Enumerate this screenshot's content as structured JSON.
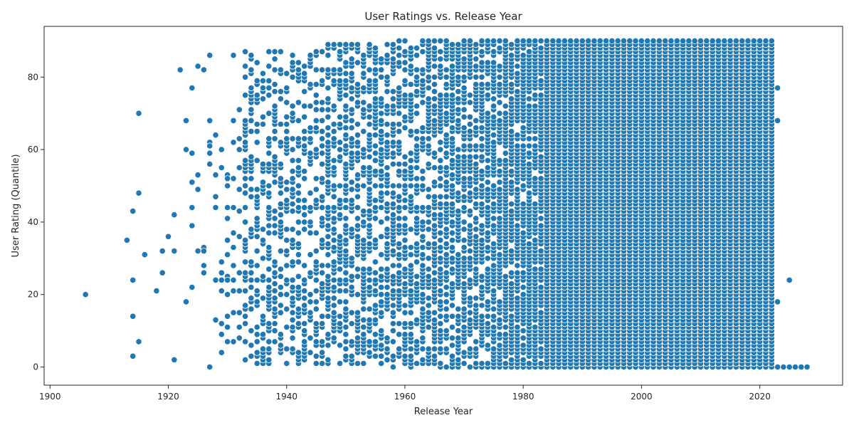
{
  "chart_data": {
    "type": "scatter",
    "title": "User Ratings vs. Release Year",
    "xlabel": "Release Year",
    "ylabel": "User Rating (Quantile)",
    "xlim": [
      1899,
      2034
    ],
    "ylim": [
      -5,
      94
    ],
    "x_ticks": [
      1900,
      1920,
      1940,
      1960,
      1980,
      2000,
      2020
    ],
    "y_ticks": [
      0,
      20,
      40,
      60,
      80
    ],
    "grid": false,
    "legend": "none",
    "marker_color": "#1f77b4",
    "points": [
      [
        1906,
        20
      ],
      [
        1913,
        35
      ],
      [
        1914,
        43
      ],
      [
        1914,
        24
      ],
      [
        1914,
        14
      ],
      [
        1914,
        3
      ],
      [
        1915,
        70
      ],
      [
        1915,
        48
      ],
      [
        1915,
        7
      ],
      [
        1916,
        31
      ],
      [
        1918,
        21
      ],
      [
        1919,
        32
      ],
      [
        1919,
        26
      ],
      [
        1920,
        36
      ],
      [
        1921,
        42
      ],
      [
        1921,
        32
      ],
      [
        1921,
        2
      ],
      [
        1922,
        82
      ],
      [
        1923,
        68
      ],
      [
        1923,
        60
      ],
      [
        1923,
        18
      ],
      [
        1924,
        77
      ],
      [
        1924,
        59
      ],
      [
        1924,
        51
      ],
      [
        1924,
        44
      ],
      [
        1924,
        39
      ],
      [
        1924,
        22
      ],
      [
        1925,
        83
      ],
      [
        1925,
        53
      ],
      [
        1925,
        49
      ],
      [
        1925,
        32
      ],
      [
        1926,
        82
      ],
      [
        1926,
        33
      ],
      [
        1926,
        32
      ],
      [
        1926,
        28
      ],
      [
        1926,
        26
      ],
      [
        1927,
        86
      ],
      [
        1927,
        68
      ],
      [
        1927,
        62
      ],
      [
        1927,
        61
      ],
      [
        1927,
        59
      ],
      [
        1927,
        56
      ],
      [
        1927,
        0
      ],
      [
        1928,
        64
      ],
      [
        1928,
        53
      ],
      [
        1928,
        47
      ],
      [
        1928,
        44
      ],
      [
        1928,
        24
      ],
      [
        1928,
        13
      ],
      [
        1929,
        60
      ],
      [
        1929,
        55
      ],
      [
        1929,
        29
      ],
      [
        1929,
        26
      ],
      [
        1929,
        24
      ],
      [
        1929,
        21
      ],
      [
        1929,
        12
      ],
      [
        1929,
        9
      ],
      [
        1929,
        4
      ],
      [
        1930,
        53
      ],
      [
        1930,
        52
      ],
      [
        1930,
        50
      ],
      [
        1930,
        44
      ],
      [
        1930,
        41
      ],
      [
        1930,
        35
      ],
      [
        1930,
        31
      ],
      [
        1930,
        25
      ],
      [
        1930,
        24
      ],
      [
        1930,
        20
      ],
      [
        1930,
        14
      ],
      [
        1930,
        11
      ],
      [
        1930,
        7
      ],
      [
        1931,
        86
      ],
      [
        1931,
        68
      ],
      [
        1931,
        62
      ],
      [
        1931,
        52
      ],
      [
        1931,
        44
      ],
      [
        1931,
        37
      ],
      [
        1931,
        33
      ],
      [
        1931,
        28
      ],
      [
        1931,
        24
      ],
      [
        1931,
        21
      ],
      [
        1931,
        15
      ],
      [
        1931,
        7
      ],
      [
        1932,
        71
      ],
      [
        1932,
        63
      ],
      [
        1932,
        60
      ],
      [
        1932,
        55
      ],
      [
        1932,
        49
      ],
      [
        1932,
        43
      ],
      [
        1932,
        36
      ],
      [
        1932,
        26
      ],
      [
        1932,
        21
      ],
      [
        1932,
        15
      ],
      [
        1932,
        11
      ],
      [
        1932,
        8
      ]
    ],
    "dense_columns": [
      {
        "x_from": 1933,
        "x_to": 1946,
        "y_min": 1,
        "y_max": 87,
        "fill": 0.42
      },
      {
        "x_from": 1947,
        "x_to": 1956,
        "y_min": 1,
        "y_max": 89,
        "fill": 0.55
      },
      {
        "x_from": 1957,
        "x_to": 1966,
        "y_min": 0,
        "y_max": 90,
        "fill": 0.62
      },
      {
        "x_from": 1967,
        "x_to": 1976,
        "y_min": 0,
        "y_max": 90,
        "fill": 0.7
      },
      {
        "x_from": 1977,
        "x_to": 1983,
        "y_min": 0,
        "y_max": 90,
        "fill": 0.85
      },
      {
        "x_from": 1984,
        "x_to": 2022,
        "y_min": 0,
        "y_max": 90,
        "fill": 1.0
      }
    ],
    "tail_points": [
      [
        2023,
        77
      ],
      [
        2023,
        68
      ],
      [
        2023,
        18
      ],
      [
        2023,
        0
      ],
      [
        2024,
        0
      ],
      [
        2025,
        24
      ],
      [
        2025,
        0
      ],
      [
        2026,
        0
      ],
      [
        2027,
        0
      ],
      [
        2028,
        0
      ]
    ]
  }
}
